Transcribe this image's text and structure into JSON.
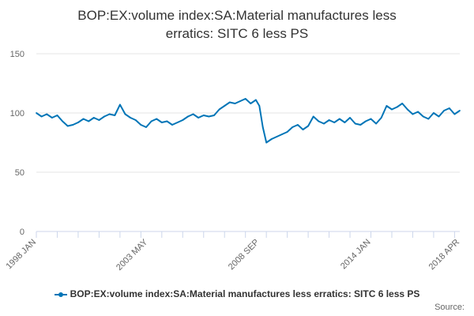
{
  "chart_data": {
    "type": "line",
    "title_lines": [
      "BOP:EX:volume index:SA:Material manufactures less",
      "erratics: SITC 6 less PS"
    ],
    "xlabel": "",
    "ylabel": "",
    "ylim": [
      0,
      150
    ],
    "yticks": [
      0,
      50,
      100,
      150
    ],
    "x_range": [
      "1998-01",
      "2018-04"
    ],
    "xtick_labels": [
      {
        "label": "1998 JAN",
        "date": "1998-01"
      },
      {
        "label": "2003 MAY",
        "date": "2003-05"
      },
      {
        "label": "2008 SEP",
        "date": "2008-09"
      },
      {
        "label": "2014 JAN",
        "date": "2014-01"
      },
      {
        "label": "2018 APR",
        "date": "2018-04"
      }
    ],
    "grid": "horizontal",
    "legend_position": "bottom-center",
    "series": [
      {
        "name": "BOP:EX:volume index:SA:Material manufactures less erratics: SITC 6 less PS",
        "color": "#0075b7",
        "points": [
          [
            "1998-01",
            100
          ],
          [
            "1998-04",
            97
          ],
          [
            "1998-07",
            99
          ],
          [
            "1998-10",
            96
          ],
          [
            "1999-01",
            98
          ],
          [
            "1999-04",
            93
          ],
          [
            "1999-07",
            89
          ],
          [
            "1999-10",
            90
          ],
          [
            "2000-01",
            92
          ],
          [
            "2000-04",
            95
          ],
          [
            "2000-07",
            93
          ],
          [
            "2000-10",
            96
          ],
          [
            "2001-01",
            94
          ],
          [
            "2001-04",
            97
          ],
          [
            "2001-07",
            99
          ],
          [
            "2001-10",
            98
          ],
          [
            "2002-01",
            107
          ],
          [
            "2002-04",
            99
          ],
          [
            "2002-07",
            96
          ],
          [
            "2002-10",
            94
          ],
          [
            "2003-01",
            90
          ],
          [
            "2003-04",
            88
          ],
          [
            "2003-07",
            93
          ],
          [
            "2003-10",
            95
          ],
          [
            "2004-01",
            92
          ],
          [
            "2004-04",
            93
          ],
          [
            "2004-07",
            90
          ],
          [
            "2004-10",
            92
          ],
          [
            "2005-01",
            94
          ],
          [
            "2005-04",
            97
          ],
          [
            "2005-07",
            99
          ],
          [
            "2005-10",
            96
          ],
          [
            "2006-01",
            98
          ],
          [
            "2006-04",
            97
          ],
          [
            "2006-07",
            98
          ],
          [
            "2006-10",
            103
          ],
          [
            "2007-01",
            106
          ],
          [
            "2007-04",
            109
          ],
          [
            "2007-07",
            108
          ],
          [
            "2007-10",
            110
          ],
          [
            "2008-01",
            112
          ],
          [
            "2008-04",
            108
          ],
          [
            "2008-07",
            111
          ],
          [
            "2008-09",
            106
          ],
          [
            "2008-11",
            88
          ],
          [
            "2009-01",
            75
          ],
          [
            "2009-04",
            78
          ],
          [
            "2009-07",
            80
          ],
          [
            "2009-10",
            82
          ],
          [
            "2010-01",
            84
          ],
          [
            "2010-04",
            88
          ],
          [
            "2010-07",
            90
          ],
          [
            "2010-10",
            86
          ],
          [
            "2011-01",
            89
          ],
          [
            "2011-04",
            97
          ],
          [
            "2011-07",
            93
          ],
          [
            "2011-10",
            91
          ],
          [
            "2012-01",
            94
          ],
          [
            "2012-04",
            92
          ],
          [
            "2012-07",
            95
          ],
          [
            "2012-10",
            92
          ],
          [
            "2013-01",
            96
          ],
          [
            "2013-04",
            91
          ],
          [
            "2013-07",
            90
          ],
          [
            "2013-10",
            93
          ],
          [
            "2014-01",
            95
          ],
          [
            "2014-04",
            91
          ],
          [
            "2014-07",
            96
          ],
          [
            "2014-10",
            106
          ],
          [
            "2015-01",
            103
          ],
          [
            "2015-04",
            105
          ],
          [
            "2015-07",
            108
          ],
          [
            "2015-10",
            103
          ],
          [
            "2016-01",
            99
          ],
          [
            "2016-04",
            101
          ],
          [
            "2016-07",
            97
          ],
          [
            "2016-10",
            95
          ],
          [
            "2017-01",
            100
          ],
          [
            "2017-04",
            97
          ],
          [
            "2017-07",
            102
          ],
          [
            "2017-10",
            104
          ],
          [
            "2018-01",
            99
          ],
          [
            "2018-04",
            102
          ]
        ]
      }
    ]
  },
  "credits": "Source:"
}
